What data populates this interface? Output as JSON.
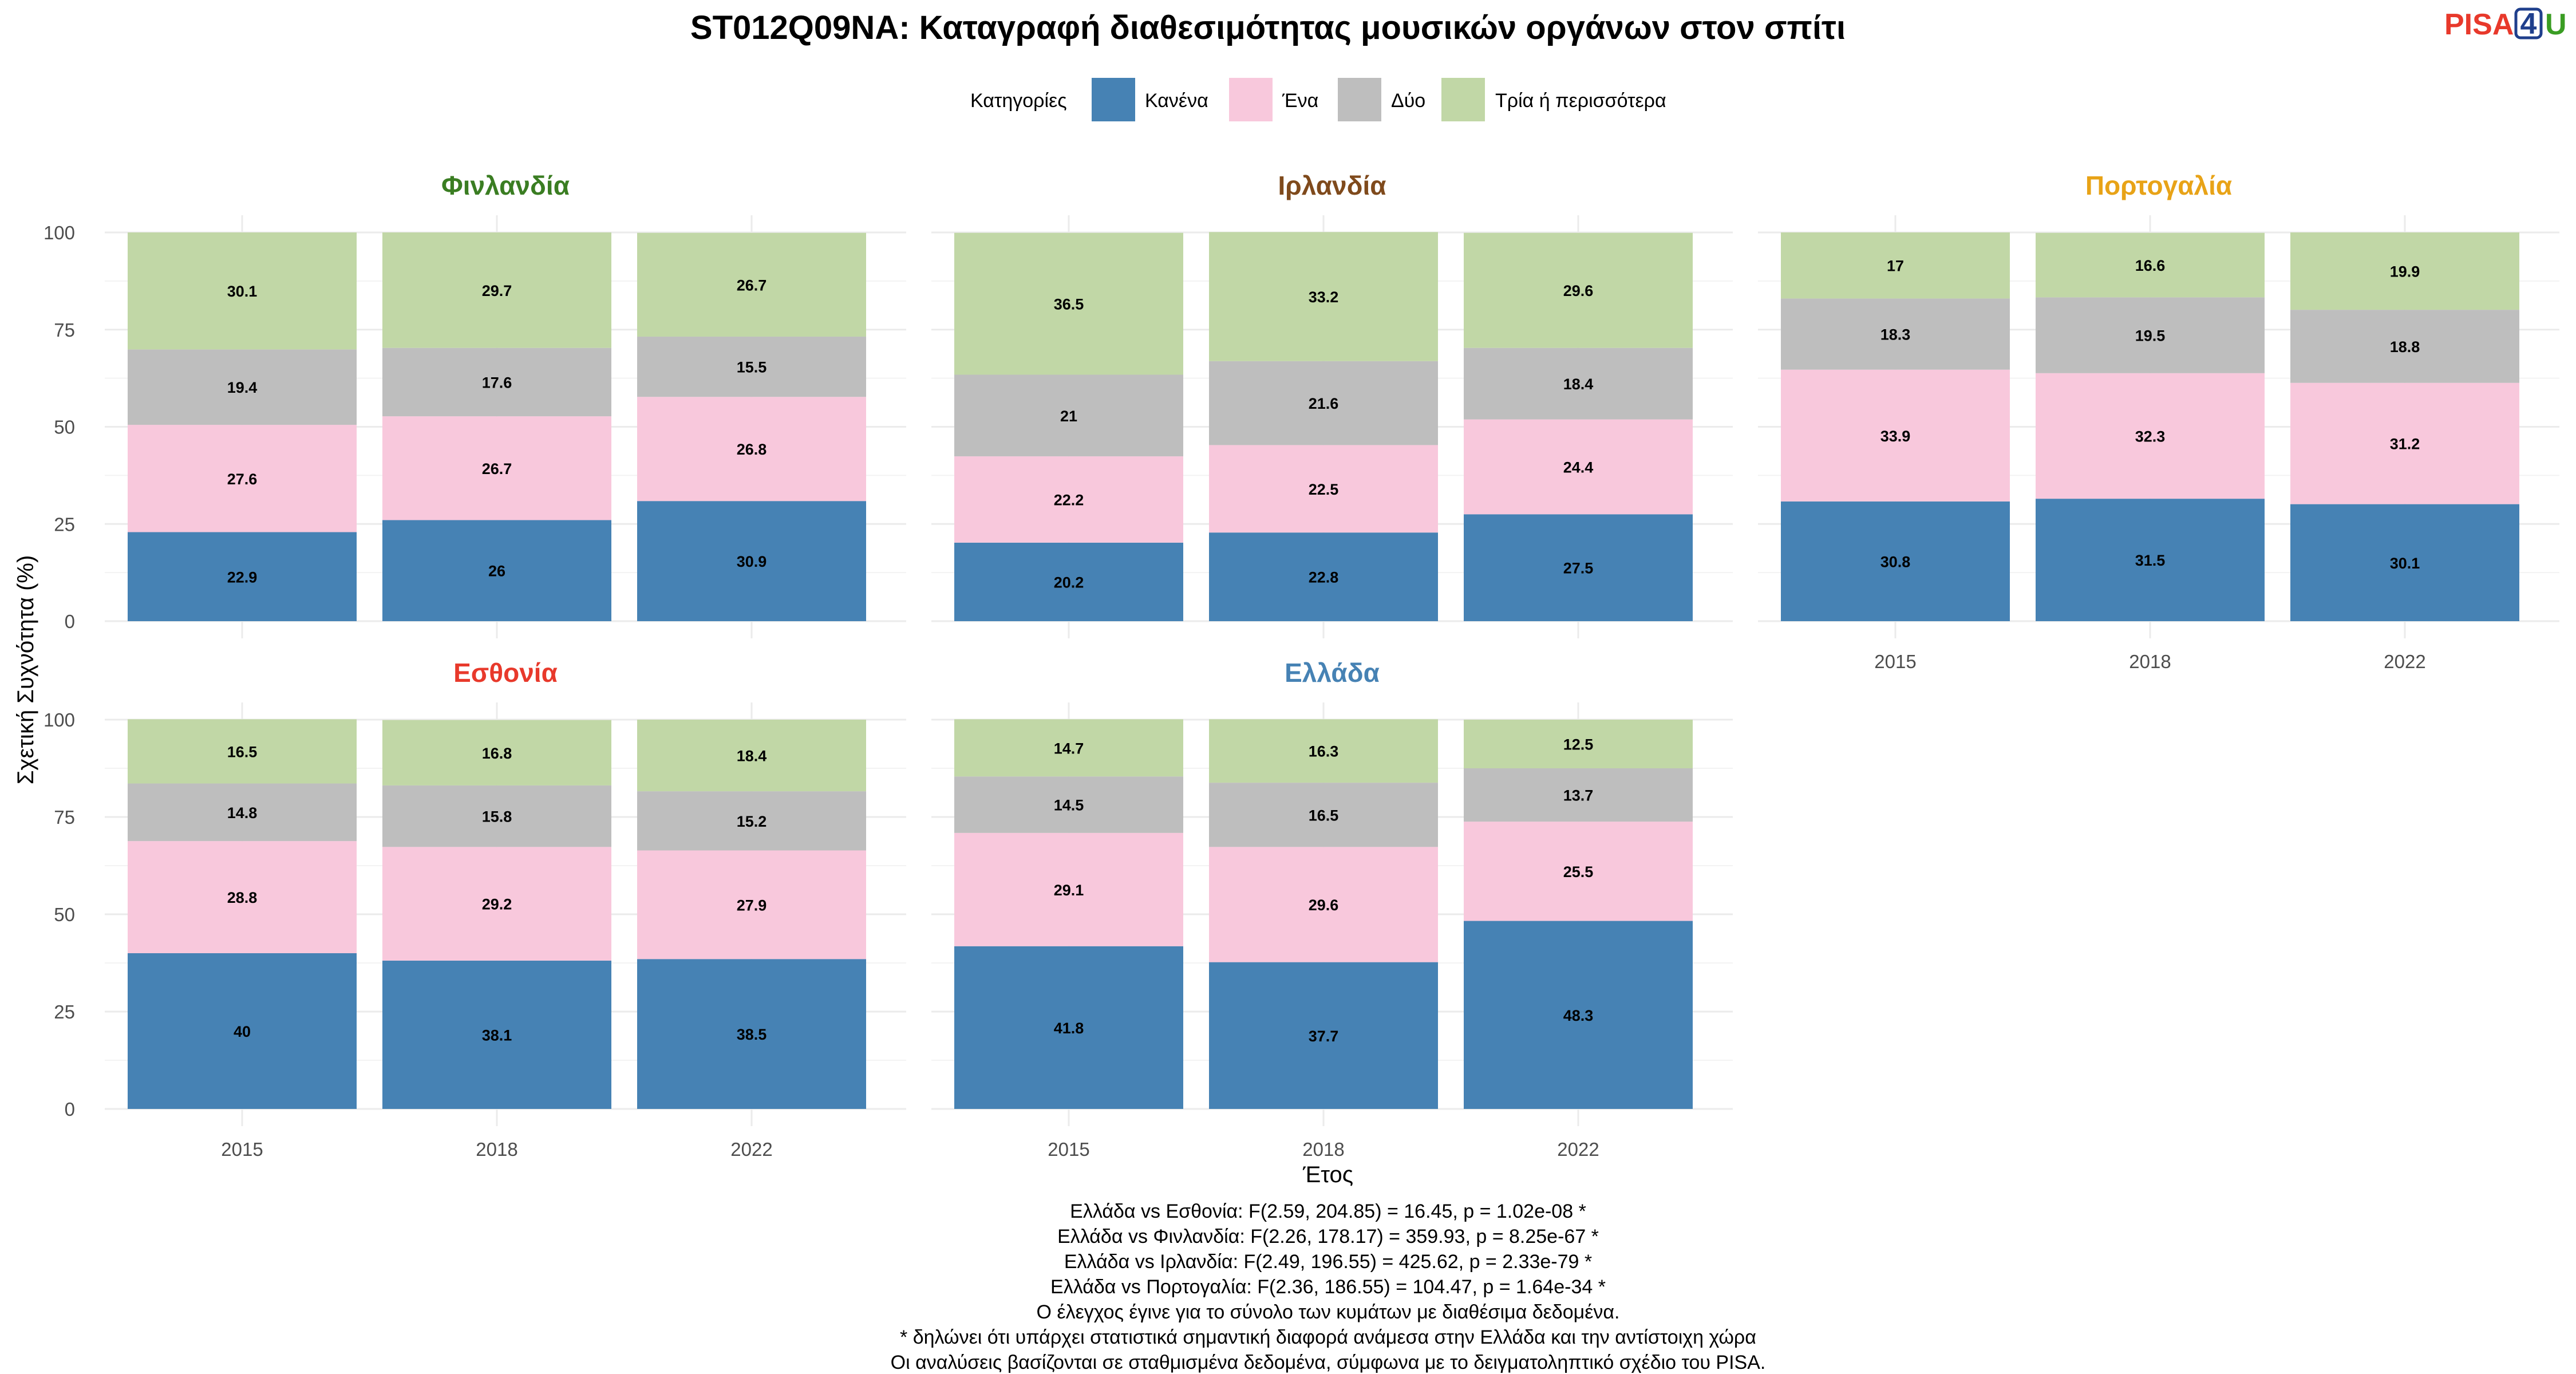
{
  "chart_data": {
    "type": "bar",
    "stacked": true,
    "title": "ST012Q09NA: Καταγραφή διαθεσιμότητας μουσικών οργάνων στον σπίτι",
    "xlabel": "Έτος",
    "ylabel": "Σχετική Συχνότητα (%)",
    "ylim": [
      0,
      100
    ],
    "yticks": [
      0,
      25,
      50,
      75,
      100
    ],
    "grid": true,
    "legend": {
      "title": "Κατηγορίες",
      "position": "top",
      "items": [
        {
          "label": "Κανένα",
          "color": "#4682B4"
        },
        {
          "label": "Ένα",
          "color": "#F8C8DC"
        },
        {
          "label": "Δύο",
          "color": "#BEBEBE"
        },
        {
          "label": "Τρία ή περισσότερα",
          "color": "#C1D7A6"
        }
      ]
    },
    "categories": [
      "2015",
      "2018",
      "2022"
    ],
    "panels": [
      {
        "name": "Φινλανδία",
        "color": "#3A7D22",
        "series": [
          {
            "name": "Κανένα",
            "values": [
              22.9,
              26,
              30.9
            ]
          },
          {
            "name": "Ένα",
            "values": [
              27.6,
              26.7,
              26.8
            ]
          },
          {
            "name": "Δύο",
            "values": [
              19.4,
              17.6,
              15.5
            ]
          },
          {
            "name": "Τρία ή περισσότερα",
            "values": [
              30.1,
              29.7,
              26.7
            ]
          }
        ]
      },
      {
        "name": "Ιρλανδία",
        "color": "#7F4A1C",
        "series": [
          {
            "name": "Κανένα",
            "values": [
              20.2,
              22.8,
              27.5
            ]
          },
          {
            "name": "Ένα",
            "values": [
              22.2,
              22.5,
              24.4
            ]
          },
          {
            "name": "Δύο",
            "values": [
              21,
              21.6,
              18.4
            ]
          },
          {
            "name": "Τρία ή περισσότερα",
            "values": [
              36.5,
              33.2,
              29.6
            ]
          }
        ]
      },
      {
        "name": "Πορτογαλία",
        "color": "#E8A317",
        "series": [
          {
            "name": "Κανένα",
            "values": [
              30.8,
              31.5,
              30.1
            ]
          },
          {
            "name": "Ένα",
            "values": [
              33.9,
              32.3,
              31.2
            ]
          },
          {
            "name": "Δύο",
            "values": [
              18.3,
              19.5,
              18.8
            ]
          },
          {
            "name": "Τρία ή περισσότερα",
            "values": [
              17,
              16.6,
              19.9
            ]
          }
        ]
      },
      {
        "name": "Εσθονία",
        "color": "#E8392B",
        "series": [
          {
            "name": "Κανένα",
            "values": [
              40,
              38.1,
              38.5
            ]
          },
          {
            "name": "Ένα",
            "values": [
              28.8,
              29.2,
              27.9
            ]
          },
          {
            "name": "Δύο",
            "values": [
              14.8,
              15.8,
              15.2
            ]
          },
          {
            "name": "Τρία ή περισσότερα",
            "values": [
              16.5,
              16.8,
              18.4
            ]
          }
        ]
      },
      {
        "name": "Ελλάδα",
        "color": "#4682B4",
        "series": [
          {
            "name": "Κανένα",
            "values": [
              41.8,
              37.7,
              48.3
            ]
          },
          {
            "name": "Ένα",
            "values": [
              29.1,
              29.6,
              25.5
            ]
          },
          {
            "name": "Δύο",
            "values": [
              14.5,
              16.5,
              13.7
            ]
          },
          {
            "name": "Τρία ή περισσότερα",
            "values": [
              14.7,
              16.3,
              12.5
            ]
          }
        ]
      }
    ]
  },
  "logo": {
    "text_pisa": "PISA",
    "text_num": "4",
    "text_u": "U",
    "color_pisa": "#E8392B",
    "color_num": "#1F3F8C",
    "color_u": "#3A9D23"
  },
  "notes": [
    "Ελλάδα vs Εσθονία: F(2.59, 204.85) = 16.45, p = 1.02e-08 *",
    "Ελλάδα vs Φινλανδία: F(2.26, 178.17) = 359.93, p = 8.25e-67 *",
    "Ελλάδα vs Ιρλανδία: F(2.49, 196.55) = 425.62, p = 2.33e-79 *",
    "Ελλάδα vs Πορτογαλία: F(2.36, 186.55) = 104.47, p = 1.64e-34 *",
    "Ο έλεγχος έγινε για το σύνολο των κυμάτων με διαθέσιμα δεδομένα.",
    "* δηλώνει ότι υπάρχει στατιστικά σημαντική διαφορά ανάμεσα στην Ελλάδα και την αντίστοιχη χώρα",
    "Οι αναλύσεις βασίζονται σε σταθμισμένα δεδομένα, σύμφωνα με το δειγματοληπτικό σχέδιο του PISA."
  ]
}
